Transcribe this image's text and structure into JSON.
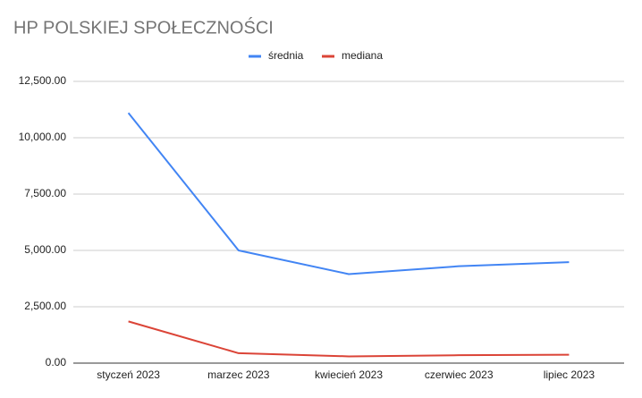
{
  "chart_data": {
    "type": "line",
    "title": "HP POLSKIEJ SPOŁECZNOŚCI",
    "categories": [
      "styczeń 2023",
      "marzec 2023",
      "kwiecień 2023",
      "czerwiec 2023",
      "lipiec 2023"
    ],
    "series": [
      {
        "name": "średnia",
        "color": "#4285f4",
        "values": [
          11100,
          5000,
          3950,
          4300,
          4480
        ]
      },
      {
        "name": "mediana",
        "color": "#db4437",
        "values": [
          1850,
          440,
          300,
          350,
          370
        ]
      }
    ],
    "ylim": [
      0,
      12500
    ],
    "yticks": [
      {
        "value": 0,
        "label": "0.00"
      },
      {
        "value": 2500,
        "label": "2,500.00"
      },
      {
        "value": 5000,
        "label": "5,000.00"
      },
      {
        "value": 7500,
        "label": "7,500.00"
      },
      {
        "value": 10000,
        "label": "10,000.00"
      },
      {
        "value": 12500,
        "label": "12,500.00"
      }
    ],
    "grid": true,
    "legend": "top"
  }
}
